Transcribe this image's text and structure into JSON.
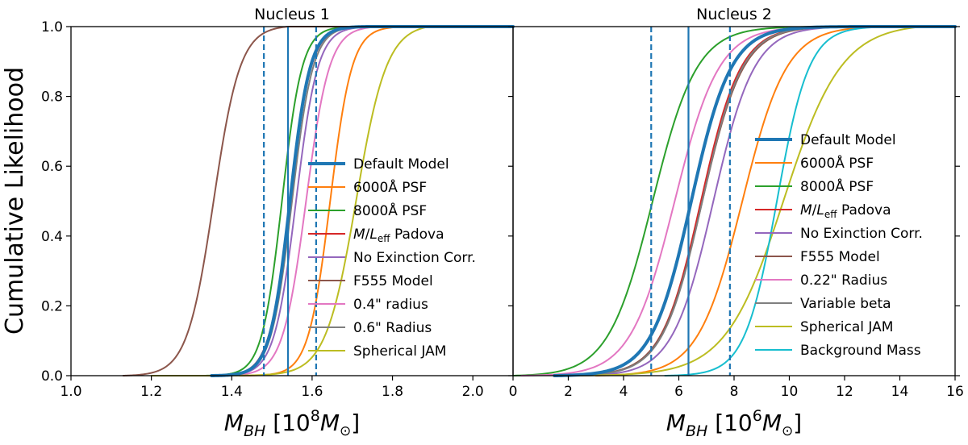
{
  "chart_data": [
    {
      "type": "line",
      "panel": "left",
      "title": "Nucleus 1",
      "ylabel": "Cumulative Likelihood",
      "xlabel": "M_BH [10^8 M_sun]",
      "xlabel_parts": {
        "main": "M",
        "sub": "BH",
        "open": " [10",
        "sup": "8",
        "M": "M",
        "msub": "⊙",
        "close": "]"
      },
      "xlim": [
        1.0,
        2.1
      ],
      "ylim": [
        0.0,
        1.0
      ],
      "x_ticks": [
        1.0,
        1.2,
        1.4,
        1.6,
        1.8,
        2.0
      ],
      "x_tick_labels": [
        "1.0",
        "1.2",
        "1.4",
        "1.6",
        "1.8",
        "2.0"
      ],
      "y_ticks": [
        0.0,
        0.2,
        0.4,
        0.6,
        0.8,
        1.0
      ],
      "y_tick_labels": [
        "0.0",
        "0.2",
        "0.4",
        "0.6",
        "0.8",
        "1.0"
      ],
      "legend_location": "center-right",
      "reference_lines": {
        "solid": 1.54,
        "dashed": [
          1.48,
          1.61
        ],
        "color": "#1f77b4"
      },
      "series": [
        {
          "name": "Default Model",
          "color": "#1f77b4",
          "width": 4,
          "center": 1.545,
          "scale": 0.025,
          "xmin": 1.35,
          "xmax": 1.74
        },
        {
          "name": "6000Å  PSF",
          "color": "#ff7f0e",
          "width": 2,
          "center": 1.645,
          "scale": 0.027,
          "xmin": 1.42,
          "xmax": 1.84
        },
        {
          "name": "8000Å  PSF",
          "color": "#2ca02c",
          "width": 2,
          "center": 1.525,
          "scale": 0.025,
          "xmin": 1.33,
          "xmax": 1.71
        },
        {
          "name": "M/L_eff Padova",
          "color": "#d62728",
          "width": 2,
          "center": 1.545,
          "scale": 0.026,
          "xmin": 1.35,
          "xmax": 1.74
        },
        {
          "name": "No Exinction Corr.",
          "color": "#9467bd",
          "width": 2,
          "center": 1.56,
          "scale": 0.027,
          "xmin": 1.36,
          "xmax": 1.77
        },
        {
          "name": "F555 Model",
          "color": "#8c564b",
          "width": 2,
          "center": 1.355,
          "scale": 0.033,
          "xmin": 1.13,
          "xmax": 1.54
        },
        {
          "name": "0.4\" radius",
          "color": "#e377c2",
          "width": 2,
          "center": 1.585,
          "scale": 0.029,
          "xmin": 1.38,
          "xmax": 1.77
        },
        {
          "name": "0.6\" Radius",
          "color": "#7f7f7f",
          "width": 2,
          "center": 1.55,
          "scale": 0.026,
          "xmin": 1.36,
          "xmax": 1.75
        },
        {
          "name": "Spherical JAM",
          "color": "#bcbd22",
          "width": 2,
          "center": 1.71,
          "scale": 0.038,
          "xmin": 1.2,
          "xmax": 1.89
        }
      ]
    },
    {
      "type": "line",
      "panel": "right",
      "title": "Nucleus 2",
      "xlabel": "M_BH [10^6 M_sun]",
      "xlabel_parts": {
        "main": "M",
        "sub": "BH",
        "open": " [10",
        "sup": "6",
        "M": "M",
        "msub": "⊙",
        "close": "]"
      },
      "xlim": [
        0,
        16
      ],
      "ylim": [
        0.0,
        1.0
      ],
      "x_ticks": [
        0,
        2,
        4,
        6,
        8,
        10,
        12,
        14,
        16
      ],
      "x_tick_labels": [
        "0",
        "2",
        "4",
        "6",
        "8",
        "10",
        "12",
        "14",
        "16"
      ],
      "y_ticks": [
        0.0,
        0.2,
        0.4,
        0.6,
        0.8,
        1.0
      ],
      "legend_location": "center-right",
      "reference_lines": {
        "solid": 6.35,
        "dashed": [
          5.0,
          7.85
        ],
        "color": "#1f77b4"
      },
      "series": [
        {
          "name": "Default Model",
          "color": "#1f77b4",
          "width": 4,
          "center": 6.45,
          "scale": 0.72,
          "xmin": 1.5,
          "xmax": 12.5
        },
        {
          "name": "6000Å  PSF",
          "color": "#ff7f0e",
          "width": 2,
          "center": 8.3,
          "scale": 0.8,
          "xmin": 3.0,
          "xmax": 13.5
        },
        {
          "name": "8000Å  PSF",
          "color": "#2ca02c",
          "width": 2,
          "center": 5.05,
          "scale": 0.8,
          "xmin": 0.0,
          "xmax": 12.0
        },
        {
          "name": "M/L_eff Padova",
          "color": "#d62728",
          "width": 2,
          "center": 6.8,
          "scale": 0.72,
          "xmin": 2.0,
          "xmax": 12.5
        },
        {
          "name": "No Exinction Corr.",
          "color": "#9467bd",
          "width": 2,
          "center": 7.25,
          "scale": 0.74,
          "xmin": 2.5,
          "xmax": 12.5
        },
        {
          "name": "F555 Model",
          "color": "#8c564b",
          "width": 2,
          "center": 6.85,
          "scale": 0.74,
          "xmin": 2.0,
          "xmax": 12.5
        },
        {
          "name": "0.22\" Radius",
          "color": "#e377c2",
          "width": 2,
          "center": 5.85,
          "scale": 0.8,
          "xmin": 0.3,
          "xmax": 12.5
        },
        {
          "name": "Variable beta",
          "color": "#7f7f7f",
          "width": 2,
          "center": 6.85,
          "scale": 0.72,
          "xmin": 2.0,
          "xmax": 12.5
        },
        {
          "name": "Spherical JAM",
          "color": "#bcbd22",
          "width": 2,
          "center": 9.8,
          "scale": 1.05,
          "xmin": 2.0,
          "xmax": 14.8
        },
        {
          "name": "Background Mass",
          "color": "#17becf",
          "width": 2,
          "center": 9.55,
          "scale": 0.58,
          "xmin": 5.5,
          "xmax": 14.0
        }
      ]
    }
  ]
}
